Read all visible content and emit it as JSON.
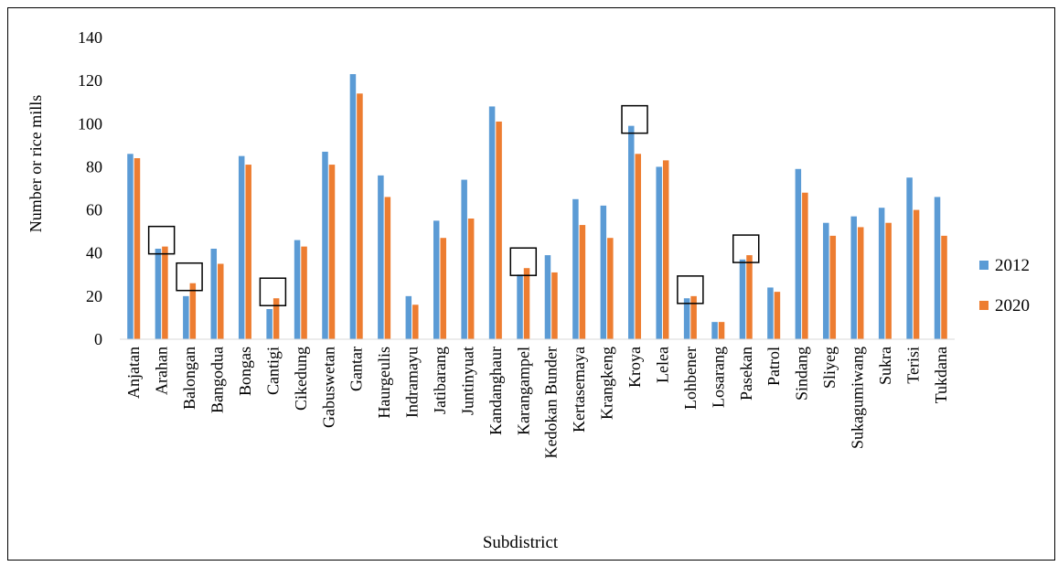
{
  "chart_data": {
    "type": "bar",
    "xlabel": "Subdistrict",
    "ylabel": "Number or rice mills",
    "ylim": [
      0,
      140
    ],
    "yticks": [
      0,
      20,
      40,
      60,
      80,
      100,
      120,
      140
    ],
    "grid": false,
    "legend_position": "right",
    "categories": [
      "Anjatan",
      "Arahan",
      "Balongan",
      "Bangodua",
      "Bongas",
      "Cantigi",
      "Cikedung",
      "Gabuswetan",
      "Gantar",
      "Haurgeulis",
      "Indramayu",
      "Jatibarang",
      "Juntinyuat",
      "Kandanghaur",
      "Karangampel",
      "Kedokan Bunder",
      "Kertasemaya",
      "Krangkeng",
      "Kroya",
      "Lelea",
      "Lohbener",
      "Losarang",
      "Pasekan",
      "Patrol",
      "Sindang",
      "Sliyeg",
      "Sukagumiwang",
      "Sukra",
      "Terisi",
      "Tukdana"
    ],
    "series": [
      {
        "name": "2012",
        "color": "#5B9BD5",
        "values": [
          86,
          42,
          20,
          42,
          85,
          14,
          46,
          87,
          123,
          76,
          20,
          55,
          74,
          108,
          30,
          39,
          65,
          62,
          99,
          80,
          19,
          8,
          37,
          24,
          79,
          54,
          57,
          61,
          75,
          66
        ]
      },
      {
        "name": "2020",
        "color": "#ED7D31",
        "values": [
          84,
          43,
          26,
          35,
          81,
          19,
          43,
          81,
          114,
          66,
          16,
          47,
          56,
          101,
          33,
          31,
          53,
          47,
          86,
          83,
          20,
          8,
          39,
          22,
          68,
          48,
          52,
          54,
          60,
          48
        ]
      }
    ],
    "highlighted_categories": [
      "Arahan",
      "Balongan",
      "Cantigi",
      "Karangampel",
      "Kroya",
      "Lohbener",
      "Pasekan"
    ]
  }
}
